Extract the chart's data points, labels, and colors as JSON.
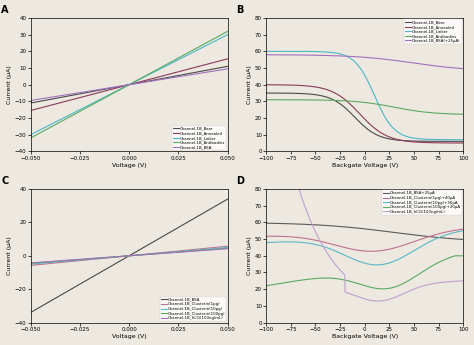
{
  "bg_color": "#ede8e0",
  "panel_A": {
    "label": "A",
    "xlabel": "Voltage (V)",
    "ylabel": "Current (μA)",
    "xlim": [
      -0.05,
      0.05
    ],
    "ylim": [
      -40,
      40
    ],
    "xticks": [
      -0.05,
      -0.025,
      0,
      0.025,
      0.05
    ],
    "yticks": [
      -40,
      -30,
      -20,
      -10,
      0,
      10,
      20,
      30,
      40
    ],
    "legend_loc": "lower right",
    "series": [
      {
        "label": "Channel-1B_Bare",
        "color": "#4a4a4a",
        "slope": 220
      },
      {
        "label": "Channel-1B_Annealed",
        "color": "#8b3a5a",
        "slope": 310
      },
      {
        "label": "Channel-1B_Linker",
        "color": "#4ab8c8",
        "slope": 600
      },
      {
        "label": "Channel-1B_Antibodies",
        "color": "#5caa60",
        "slope": 640
      },
      {
        "label": "Channel-1B_BSA",
        "color": "#a070c0",
        "slope": 190
      }
    ]
  },
  "panel_B": {
    "label": "B",
    "xlabel": "Backgate Voltage (V)",
    "ylabel": "Current (μA)",
    "xlim": [
      -100,
      100
    ],
    "ylim": [
      0,
      80
    ],
    "xticks": [
      -100,
      -75,
      -50,
      -25,
      0,
      25,
      50,
      75,
      100
    ],
    "yticks": [
      0,
      10,
      20,
      30,
      40,
      50,
      60,
      70,
      80
    ],
    "legend_loc": "upper right"
  },
  "panel_C": {
    "label": "C",
    "xlabel": "Voltage (V)",
    "ylabel": "Current (μA)",
    "xlim": [
      -0.05,
      0.05
    ],
    "ylim": [
      -40,
      40
    ],
    "xticks": [
      -0.05,
      -0.025,
      0,
      0.025,
      0.05
    ],
    "yticks": [
      -40,
      -20,
      0,
      20,
      40
    ],
    "legend_loc": "lower right",
    "series": [
      {
        "label": "Channel-1B_BSA",
        "color": "#4a4a4a",
        "slope": 680
      },
      {
        "label": "Channel-1B_Clusterin(1pg)",
        "color": "#c07090",
        "slope": 115
      },
      {
        "label": "Channel-1B_Clusterin(10pg)",
        "color": "#5ab8c8",
        "slope": 100
      },
      {
        "label": "Channel-1B_Clusterin(100pg)",
        "color": "#5caa60",
        "slope": 90
      },
      {
        "label": "Channel-1B_hCG(100ng/mL)",
        "color": "#a070c0",
        "slope": 85
      }
    ]
  },
  "panel_D": {
    "label": "D",
    "xlabel": "Backgate Voltage (V)",
    "ylabel": "Current (μA)",
    "xlim": [
      -100,
      100
    ],
    "ylim": [
      0,
      80
    ],
    "xticks": [
      -100,
      -75,
      -50,
      -25,
      0,
      25,
      50,
      75,
      100
    ],
    "yticks": [
      0,
      10,
      20,
      30,
      40,
      50,
      60,
      70,
      80
    ],
    "legend_loc": "upper right"
  }
}
